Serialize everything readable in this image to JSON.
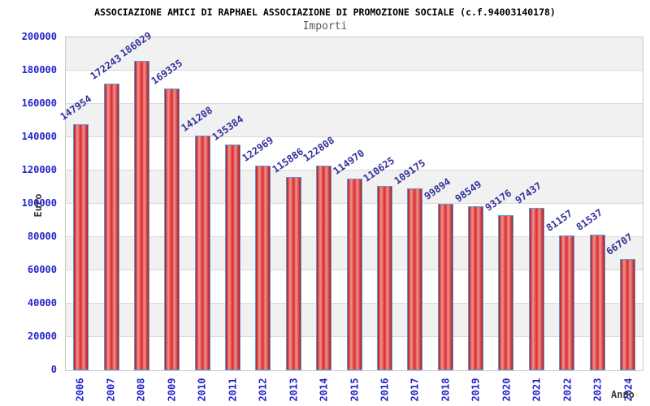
{
  "chart_data": {
    "type": "bar",
    "title": "ASSOCIAZIONE AMICI DI RAPHAEL ASSOCIAZIONE DI PROMOZIONE SOCIALE (c.f.94003140178)",
    "subtitle": "Importi",
    "xlabel": "Anno",
    "ylabel": "Euro",
    "categories": [
      "2006",
      "2007",
      "2008",
      "2009",
      "2010",
      "2011",
      "2012",
      "2013",
      "2014",
      "2015",
      "2016",
      "2017",
      "2018",
      "2019",
      "2020",
      "2021",
      "2022",
      "2023",
      "2024"
    ],
    "values": [
      147954,
      172243,
      186029,
      169335,
      141208,
      135384,
      122969,
      115886,
      122808,
      114970,
      110625,
      109175,
      99894,
      98549,
      93176,
      97437,
      81157,
      81537,
      66707
    ],
    "ylim": [
      0,
      200000
    ],
    "ytick_step": 20000,
    "grid": true,
    "legend_position": "none",
    "colors": {
      "bar_dark": "#b51717",
      "bar_mid": "#d92b2b",
      "bar_light": "#f29191",
      "bar_border": "#5b9bd5",
      "tick_label": "#2323cc",
      "data_label": "#32329b",
      "band_gray": "#f1f1f2",
      "band_white": "#ffffff",
      "gridline": "#dadada",
      "title_color": "#000000",
      "subtitle_color": "#595959",
      "axis_title_color": "#3a3a3a"
    }
  }
}
